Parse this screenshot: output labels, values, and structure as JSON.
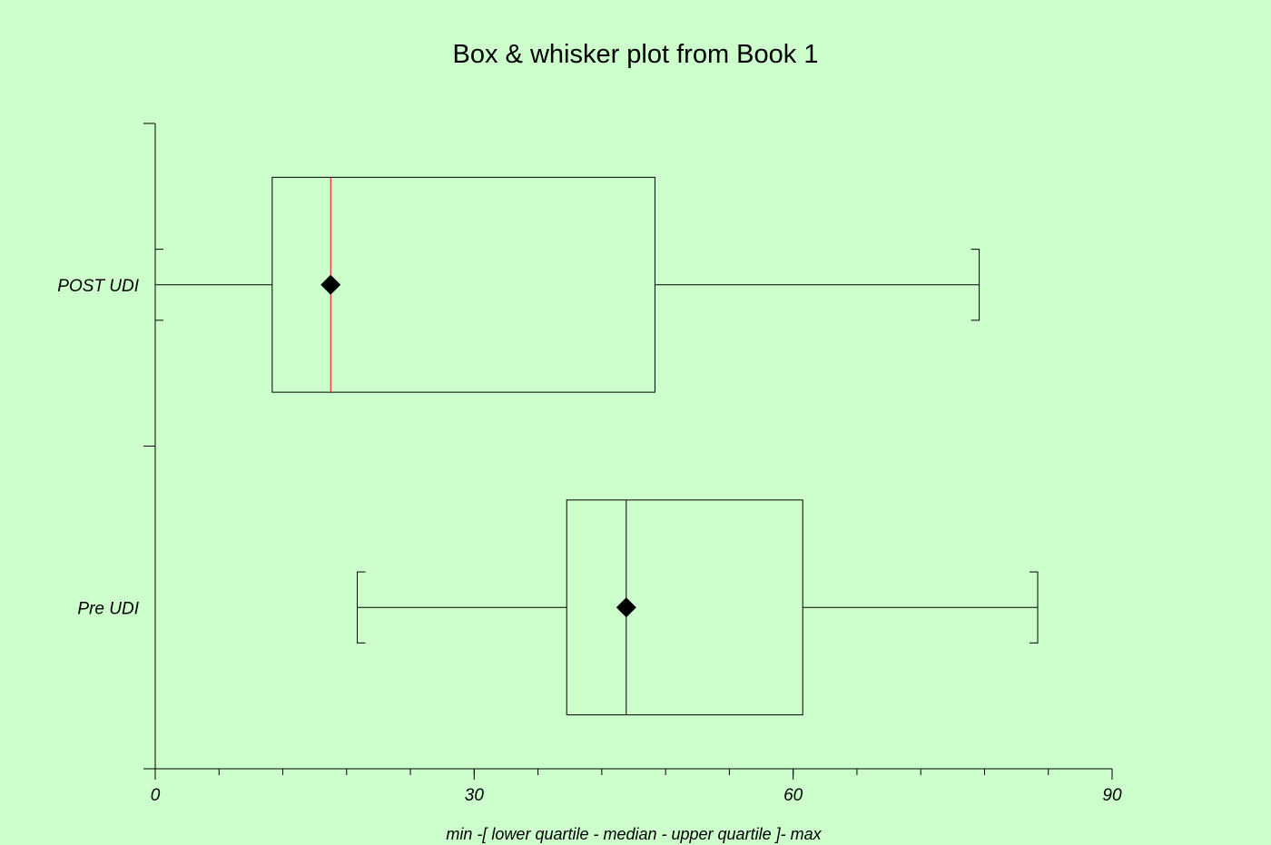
{
  "chart_data": {
    "type": "box",
    "title": "Box & whisker plot from Book 1",
    "xlabel": "min -[ lower quartile - median - upper quartile ]- max",
    "ylabel": "",
    "xlim": [
      0,
      90
    ],
    "xticks": [
      0,
      30,
      60,
      90
    ],
    "x_minor_step": 6,
    "grid": false,
    "series": [
      {
        "name": "POST UDI",
        "min": 0,
        "q1": 11,
        "median": 16.5,
        "q3": 47,
        "max": 77.5,
        "mean": 16.5,
        "median_color": "#ff0000"
      },
      {
        "name": "Pre UDI",
        "min": 19,
        "q1": 38.7,
        "median": 44.3,
        "q3": 60.9,
        "max": 83,
        "mean": 44.3,
        "median_color": "#000000"
      }
    ]
  },
  "colors": {
    "background": "#ccffcc",
    "lines": "#000000",
    "marker": "#000000"
  }
}
